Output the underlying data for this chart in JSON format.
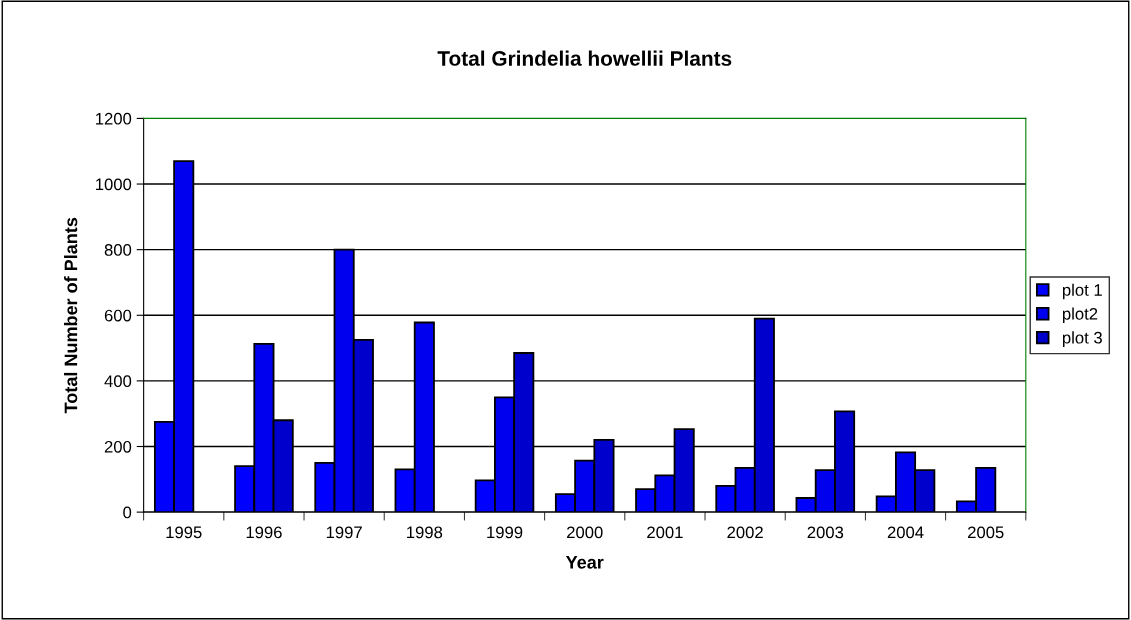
{
  "chart_data": {
    "type": "bar",
    "title": "Total Grindelia howellii Plants",
    "xlabel": "Year",
    "ylabel": "Total Number of Plants",
    "categories": [
      "1995",
      "1996",
      "1997",
      "1998",
      "1999",
      "2000",
      "2001",
      "2002",
      "2003",
      "2004",
      "2005"
    ],
    "series": [
      {
        "name": "plot 1",
        "color": "#0000ff",
        "values": [
          275,
          140,
          150,
          130,
          97,
          55,
          70,
          80,
          43,
          48,
          33
        ]
      },
      {
        "name": "plot2",
        "color": "#0000ee",
        "values": [
          1070,
          513,
          800,
          578,
          350,
          157,
          112,
          135,
          128,
          182,
          135
        ]
      },
      {
        "name": "plot 3",
        "color": "#0000cc",
        "values": [
          null,
          280,
          525,
          null,
          485,
          220,
          253,
          590,
          307,
          128,
          null
        ]
      }
    ],
    "ylim": [
      0,
      1200
    ],
    "yticks": [
      0,
      200,
      400,
      600,
      800,
      1000,
      1200
    ],
    "grid": "y",
    "legend": "right"
  }
}
